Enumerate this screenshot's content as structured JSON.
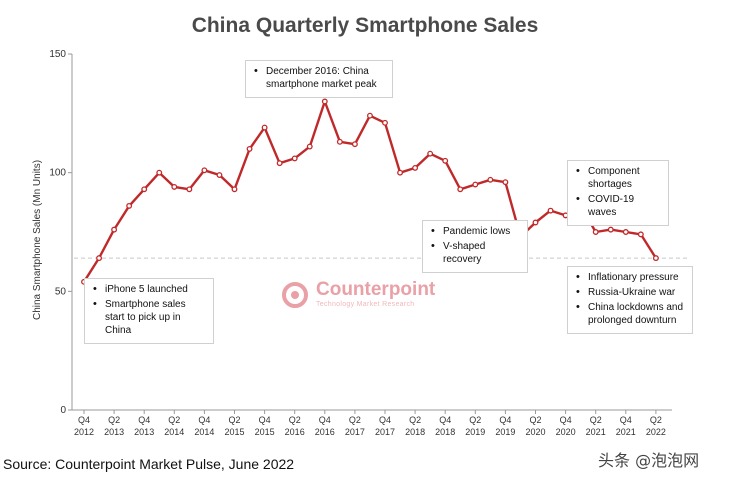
{
  "title": "China Quarterly Smartphone Sales",
  "source": "Source: Counterpoint Market Pulse, June 2022",
  "watermark": "头条 @泡泡网",
  "logo": {
    "name": "Counterpoint",
    "tagline": "Technology Market Research"
  },
  "colors": {
    "line": "#c0292a",
    "marker_fill": "#ffffff",
    "reference_line": "#c8c8c8",
    "axis": "#999999",
    "logo": "#e9a1a7"
  },
  "annotations": [
    {
      "id": "ann-iphone5",
      "items": [
        "iPhone 5 launched",
        "Smartphone sales start to pick up in China"
      ]
    },
    {
      "id": "ann-peak",
      "items": [
        "December 2016: China smartphone market peak"
      ]
    },
    {
      "id": "ann-pandemic",
      "items": [
        "Pandemic lows",
        "V-shaped recovery"
      ]
    },
    {
      "id": "ann-shortage",
      "items": [
        "Component shortages",
        "COVID-19 waves"
      ]
    },
    {
      "id": "ann-inflation",
      "items": [
        "Inflationary pressure",
        "Russia-Ukraine war",
        "China lockdowns and prolonged downturn"
      ]
    }
  ],
  "chart_data": {
    "type": "line",
    "title": "China Quarterly Smartphone Sales",
    "xlabel": "",
    "ylabel": "China Smartphone Sales (Mn Units)",
    "ylim": [
      0,
      150
    ],
    "yticks": [
      0,
      50,
      100,
      150
    ],
    "grid": false,
    "reference_line": {
      "y": 64,
      "style": "dashed"
    },
    "x": [
      "Q4 2012",
      "Q1 2013",
      "Q2 2013",
      "Q3 2013",
      "Q4 2013",
      "Q1 2014",
      "Q2 2014",
      "Q3 2014",
      "Q4 2014",
      "Q1 2015",
      "Q2 2015",
      "Q3 2015",
      "Q4 2015",
      "Q1 2016",
      "Q2 2016",
      "Q3 2016",
      "Q4 2016",
      "Q1 2017",
      "Q2 2017",
      "Q3 2017",
      "Q4 2017",
      "Q1 2018",
      "Q2 2018",
      "Q3 2018",
      "Q4 2018",
      "Q1 2019",
      "Q2 2019",
      "Q3 2019",
      "Q4 2019",
      "Q1 2020",
      "Q2 2020",
      "Q3 2020",
      "Q4 2020",
      "Q1 2021",
      "Q2 2021",
      "Q3 2021",
      "Q4 2021",
      "Q1 2022",
      "Q2 2022"
    ],
    "xtick_labels": [
      {
        "q": "Q4",
        "y": "2012"
      },
      {
        "q": "Q2",
        "y": "2013"
      },
      {
        "q": "Q4",
        "y": "2013"
      },
      {
        "q": "Q2",
        "y": "2014"
      },
      {
        "q": "Q4",
        "y": "2014"
      },
      {
        "q": "Q2",
        "y": "2015"
      },
      {
        "q": "Q4",
        "y": "2015"
      },
      {
        "q": "Q2",
        "y": "2016"
      },
      {
        "q": "Q4",
        "y": "2016"
      },
      {
        "q": "Q2",
        "y": "2017"
      },
      {
        "q": "Q4",
        "y": "2017"
      },
      {
        "q": "Q2",
        "y": "2018"
      },
      {
        "q": "Q4",
        "y": "2018"
      },
      {
        "q": "Q2",
        "y": "2019"
      },
      {
        "q": "Q4",
        "y": "2019"
      },
      {
        "q": "Q2",
        "y": "2020"
      },
      {
        "q": "Q4",
        "y": "2020"
      },
      {
        "q": "Q2",
        "y": "2021"
      },
      {
        "q": "Q4",
        "y": "2021"
      },
      {
        "q": "Q2",
        "y": "2022"
      }
    ],
    "series": [
      {
        "values": [
          54,
          64,
          76,
          86,
          93,
          100,
          94,
          93,
          101,
          99,
          93,
          110,
          119,
          104,
          106,
          111,
          130,
          113,
          112,
          124,
          121,
          100,
          102,
          108,
          105,
          93,
          95,
          97,
          96,
          73,
          79,
          84,
          82,
          86,
          75,
          76,
          75,
          74,
          64
        ]
      }
    ]
  }
}
